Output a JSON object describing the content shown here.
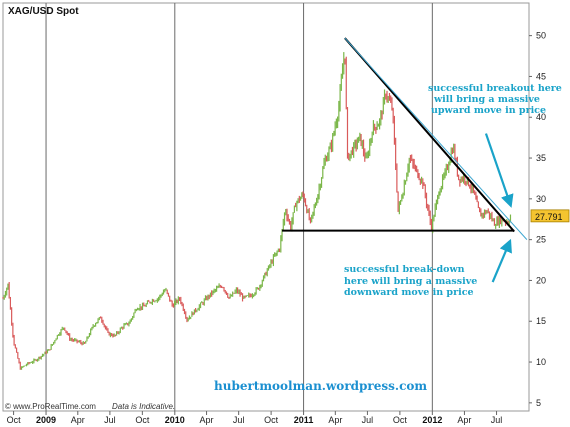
{
  "chart_data": {
    "type": "line",
    "title": "XAG/USD Spot",
    "xlabel": "",
    "ylabel": "",
    "ylim": [
      4,
      54
    ],
    "y_ticks": [
      5,
      10,
      15,
      20,
      25,
      30,
      35,
      40,
      45,
      50
    ],
    "x_range": [
      "2008-09-01",
      "2012-10-01"
    ],
    "x_ticks": [
      {
        "label": "Oct",
        "date": "2008-10-01",
        "bold": false
      },
      {
        "label": "2009",
        "date": "2009-01-01",
        "bold": true
      },
      {
        "label": "Apr",
        "date": "2009-04-01",
        "bold": false
      },
      {
        "label": "Jul",
        "date": "2009-07-01",
        "bold": false
      },
      {
        "label": "Oct",
        "date": "2009-10-01",
        "bold": false
      },
      {
        "label": "2010",
        "date": "2010-01-01",
        "bold": true
      },
      {
        "label": "Apr",
        "date": "2010-04-01",
        "bold": false
      },
      {
        "label": "Jul",
        "date": "2010-07-01",
        "bold": false
      },
      {
        "label": "Oct",
        "date": "2010-10-01",
        "bold": false
      },
      {
        "label": "2011",
        "date": "2011-01-01",
        "bold": true
      },
      {
        "label": "Apr",
        "date": "2011-04-01",
        "bold": false
      },
      {
        "label": "Jul",
        "date": "2011-07-01",
        "bold": false
      },
      {
        "label": "Oct",
        "date": "2011-10-01",
        "bold": false
      },
      {
        "label": "2012",
        "date": "2012-01-01",
        "bold": true
      },
      {
        "label": "Apr",
        "date": "2012-04-01",
        "bold": false
      },
      {
        "label": "Jul",
        "date": "2012-07-01",
        "bold": false
      }
    ],
    "series": [
      {
        "points": [
          [
            "2008-09-01",
            17.8
          ],
          [
            "2008-09-15",
            19.5
          ],
          [
            "2008-10-01",
            12.5
          ],
          [
            "2008-10-20",
            9.2
          ],
          [
            "2008-11-10",
            9.8
          ],
          [
            "2008-12-01",
            10.2
          ],
          [
            "2008-12-20",
            10.8
          ],
          [
            "2009-01-10",
            11.5
          ],
          [
            "2009-02-01",
            13.2
          ],
          [
            "2009-02-20",
            14.3
          ],
          [
            "2009-03-10",
            12.8
          ],
          [
            "2009-04-01",
            12.5
          ],
          [
            "2009-04-20",
            12.2
          ],
          [
            "2009-05-15",
            14.5
          ],
          [
            "2009-06-05",
            15.5
          ],
          [
            "2009-06-25",
            13.5
          ],
          [
            "2009-07-15",
            13.2
          ],
          [
            "2009-08-05",
            14.3
          ],
          [
            "2009-08-25",
            14.8
          ],
          [
            "2009-09-15",
            16.7
          ],
          [
            "2009-10-05",
            16.8
          ],
          [
            "2009-10-25",
            17.5
          ],
          [
            "2009-11-15",
            17.8
          ],
          [
            "2009-12-05",
            18.9
          ],
          [
            "2009-12-25",
            16.9
          ],
          [
            "2010-01-15",
            17.8
          ],
          [
            "2010-02-05",
            15.2
          ],
          [
            "2010-02-25",
            16.2
          ],
          [
            "2010-03-15",
            17.0
          ],
          [
            "2010-04-05",
            18.0
          ],
          [
            "2010-04-25",
            18.8
          ],
          [
            "2010-05-15",
            19.4
          ],
          [
            "2010-06-05",
            17.8
          ],
          [
            "2010-06-25",
            18.8
          ],
          [
            "2010-07-15",
            17.8
          ],
          [
            "2010-08-05",
            18.2
          ],
          [
            "2010-08-25",
            19.0
          ],
          [
            "2010-09-15",
            20.8
          ],
          [
            "2010-10-05",
            22.5
          ],
          [
            "2010-10-25",
            24.0
          ],
          [
            "2010-11-10",
            28.8
          ],
          [
            "2010-11-25",
            26.5
          ],
          [
            "2010-12-10",
            29.5
          ],
          [
            "2010-12-31",
            30.5
          ],
          [
            "2011-01-20",
            27.0
          ],
          [
            "2011-02-10",
            30.5
          ],
          [
            "2011-03-01",
            34.5
          ],
          [
            "2011-03-20",
            36.5
          ],
          [
            "2011-04-10",
            41.0
          ],
          [
            "2011-04-28",
            48.5
          ],
          [
            "2011-05-05",
            35.0
          ],
          [
            "2011-05-20",
            36.0
          ],
          [
            "2011-06-10",
            37.5
          ],
          [
            "2011-06-28",
            34.5
          ],
          [
            "2011-07-15",
            38.5
          ],
          [
            "2011-08-05",
            39.5
          ],
          [
            "2011-08-22",
            43.0
          ],
          [
            "2011-09-10",
            41.0
          ],
          [
            "2011-09-26",
            28.5
          ],
          [
            "2011-10-10",
            31.0
          ],
          [
            "2011-10-28",
            35.0
          ],
          [
            "2011-11-15",
            33.5
          ],
          [
            "2011-12-05",
            32.0
          ],
          [
            "2011-12-29",
            26.5
          ],
          [
            "2012-01-20",
            31.0
          ],
          [
            "2012-02-10",
            33.5
          ],
          [
            "2012-02-29",
            36.5
          ],
          [
            "2012-03-15",
            32.5
          ],
          [
            "2012-04-05",
            32.5
          ],
          [
            "2012-04-25",
            31.0
          ],
          [
            "2012-05-15",
            28.0
          ],
          [
            "2012-06-05",
            28.5
          ],
          [
            "2012-06-25",
            27.0
          ],
          [
            "2012-07-15",
            27.5
          ],
          [
            "2012-08-01",
            27.2
          ],
          [
            "2012-08-10",
            27.8
          ]
        ],
        "up_color": "#7ab648",
        "down_color": "#d95a5a"
      }
    ],
    "trendlines": [
      {
        "from": [
          "2011-04-28",
          49.7
        ],
        "to": [
          "2012-08-20",
          26.0
        ],
        "color": "#000000",
        "width": 2
      },
      {
        "from": [
          "2010-11-01",
          26.1
        ],
        "to": [
          "2012-08-20",
          26.1
        ],
        "color": "#000000",
        "width": 2
      },
      {
        "from": [
          "2011-04-28",
          49.7
        ],
        "to": [
          "2012-09-25",
          25.0
        ],
        "color": "#3fa7d0",
        "width": 1
      }
    ],
    "last_price": 27.791,
    "last_price_label": "27.791",
    "price_tag_color": "#f4c430",
    "arrows": [
      {
        "from": [
          "2012-06-01",
          38.0
        ],
        "to": [
          "2012-08-10",
          29.2
        ]
      },
      {
        "from": [
          "2012-06-20",
          19.8
        ],
        "to": [
          "2012-08-08",
          24.8
        ]
      }
    ],
    "annotations": {
      "top": [
        "successful breakout here",
        "will bring a massive",
        "upward move in price"
      ],
      "bottom": [
        "successful break-down",
        "here will bring a massive",
        "downward move in price"
      ]
    },
    "grid": "vertical-year-lines",
    "annotation_color": "#1aa3c9"
  },
  "watermark": "hubertmoolman.wordpress.com",
  "footer": {
    "copyright": "© www.ProRealTime.com",
    "note": "Data is Indicative."
  }
}
